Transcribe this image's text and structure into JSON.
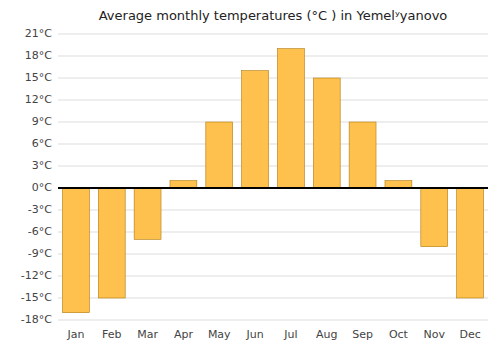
{
  "chart_data": {
    "type": "bar",
    "title": "Average monthly temperatures (°C ) in Yemelʸ​yanovo",
    "categories": [
      "Jan",
      "Feb",
      "Mar",
      "Apr",
      "May",
      "Jun",
      "Jul",
      "Aug",
      "Sep",
      "Oct",
      "Nov",
      "Dec"
    ],
    "values": [
      -17,
      -15,
      -7,
      1,
      9,
      16,
      19,
      15,
      9,
      1,
      -8,
      -15
    ],
    "color": "#FFC14D",
    "ylim": [
      -18,
      21
    ],
    "yticks": [
      {
        "value": -18,
        "label": "-18°C"
      },
      {
        "value": -15,
        "label": "-15°C"
      },
      {
        "value": -12,
        "label": "-12°C"
      },
      {
        "value": -9,
        "label": "-9°C"
      },
      {
        "value": -6,
        "label": "-6°C"
      },
      {
        "value": -3,
        "label": "-3°C"
      },
      {
        "value": 0,
        "label": "0°C"
      },
      {
        "value": 3,
        "label": "3°C"
      },
      {
        "value": 6,
        "label": "6°C"
      },
      {
        "value": 9,
        "label": "9°C"
      },
      {
        "value": 12,
        "label": "12°C"
      },
      {
        "value": 15,
        "label": "15°C"
      },
      {
        "value": 18,
        "label": "18°C"
      },
      {
        "value": 21,
        "label": "21°C"
      }
    ],
    "grid": true
  }
}
